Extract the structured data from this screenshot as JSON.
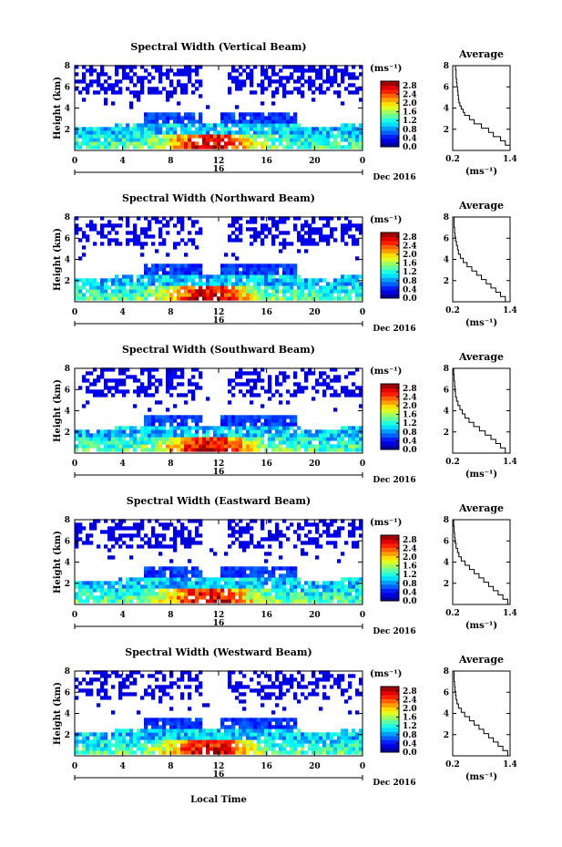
{
  "figure": {
    "xlabel": "Local Time",
    "day_label": "16",
    "date_label": "Dec 2016",
    "ylabel": "Height (km)",
    "colorbar_unit": "(ms⁻¹)",
    "avg_title": "Average",
    "avg_xlabel": "(ms⁻¹)"
  },
  "chart_data": [
    {
      "type": "heatmap",
      "title": "Spectral Width (Vertical Beam)",
      "seed": 11,
      "ylabel": "Height (km)",
      "xlabel": "Local Time",
      "x_ticks": [
        "0",
        "4",
        "8",
        "12",
        "16",
        "20",
        "0"
      ],
      "xlim": [
        0,
        24
      ],
      "y_ticks": [
        "2",
        "4",
        "6",
        "8"
      ],
      "ylim": [
        0,
        8
      ],
      "colorbar_ticks": [
        "0.0",
        "0.4",
        "0.8",
        "1.2",
        "1.6",
        "2.0",
        "2.4",
        "2.8"
      ],
      "colorbar_range": [
        0,
        3.0
      ]
    },
    {
      "type": "heatmap",
      "title": "Spectral Width (Northward Beam)",
      "seed": 23,
      "ylabel": "Height (km)",
      "xlabel": "Local Time",
      "x_ticks": [
        "0",
        "4",
        "8",
        "12",
        "16",
        "20",
        "0"
      ],
      "xlim": [
        0,
        24
      ],
      "y_ticks": [
        "2",
        "4",
        "6",
        "8"
      ],
      "ylim": [
        0,
        8
      ],
      "colorbar_ticks": [
        "0.0",
        "0.4",
        "0.8",
        "1.2",
        "1.6",
        "2.0",
        "2.4",
        "2.8"
      ],
      "colorbar_range": [
        0,
        3.0
      ]
    },
    {
      "type": "heatmap",
      "title": "Spectral Width (Southward Beam)",
      "seed": 37,
      "ylabel": "Height (km)",
      "xlabel": "Local Time",
      "x_ticks": [
        "0",
        "4",
        "8",
        "12",
        "16",
        "20",
        "0"
      ],
      "xlim": [
        0,
        24
      ],
      "y_ticks": [
        "2",
        "4",
        "6",
        "8"
      ],
      "ylim": [
        0,
        8
      ],
      "colorbar_ticks": [
        "0.0",
        "0.4",
        "0.8",
        "1.2",
        "1.6",
        "2.0",
        "2.4",
        "2.8"
      ],
      "colorbar_range": [
        0,
        3.0
      ]
    },
    {
      "type": "heatmap",
      "title": "Spectral Width (Eastward Beam)",
      "seed": 41,
      "ylabel": "Height (km)",
      "xlabel": "Local Time",
      "x_ticks": [
        "0",
        "4",
        "8",
        "12",
        "16",
        "20",
        "0"
      ],
      "xlim": [
        0,
        24
      ],
      "y_ticks": [
        "2",
        "4",
        "6",
        "8"
      ],
      "ylim": [
        0,
        8
      ],
      "colorbar_ticks": [
        "0.0",
        "0.4",
        "0.8",
        "1.2",
        "1.6",
        "2.0",
        "2.4",
        "2.8"
      ],
      "colorbar_range": [
        0,
        3.0
      ]
    },
    {
      "type": "heatmap",
      "title": "Spectral Width (Westward Beam)",
      "seed": 53,
      "ylabel": "Height (km)",
      "xlabel": "Local Time",
      "x_ticks": [
        "0",
        "4",
        "8",
        "12",
        "16",
        "20",
        "0"
      ],
      "xlim": [
        0,
        24
      ],
      "y_ticks": [
        "2",
        "4",
        "6",
        "8"
      ],
      "ylim": [
        0,
        8
      ],
      "colorbar_ticks": [
        "0.0",
        "0.4",
        "0.8",
        "1.2",
        "1.6",
        "2.0",
        "2.4",
        "2.8"
      ],
      "colorbar_range": [
        0,
        3.0
      ]
    },
    {
      "type": "line",
      "title": "Average",
      "beam": "Vertical",
      "xlabel": "(ms⁻¹)",
      "x_ticks": [
        "0.2",
        "1.4"
      ],
      "xlim": [
        0.2,
        1.4
      ],
      "y_ticks": [
        "2",
        "4",
        "6",
        "8"
      ],
      "ylim": [
        0,
        8
      ],
      "series": [
        {
          "x": [
            1.4,
            1.3,
            1.2,
            1.05,
            0.95,
            0.8,
            0.65,
            0.55,
            0.45,
            0.42,
            0.38,
            0.35,
            0.33,
            0.32,
            0.31,
            0.3,
            0.29,
            0.28,
            0.27,
            0.27,
            0.26,
            0.25
          ],
          "y": [
            0.0,
            0.5,
            0.9,
            1.3,
            1.7,
            2.1,
            2.5,
            2.9,
            3.3,
            3.6,
            3.9,
            4.2,
            4.5,
            4.8,
            5.2,
            5.6,
            6.0,
            6.4,
            6.8,
            7.2,
            7.6,
            8.0
          ]
        }
      ]
    },
    {
      "type": "line",
      "title": "Average",
      "beam": "Northward",
      "xlabel": "(ms⁻¹)",
      "x_ticks": [
        "0.2",
        "1.4"
      ],
      "xlim": [
        0.2,
        1.4
      ],
      "y_ticks": [
        "2",
        "4",
        "6",
        "8"
      ],
      "ylim": [
        0,
        8
      ],
      "series": [
        {
          "x": [
            1.3,
            1.2,
            1.1,
            1.0,
            0.9,
            0.8,
            0.7,
            0.6,
            0.5,
            0.42,
            0.36,
            0.32,
            0.3,
            0.28,
            0.26,
            0.25,
            0.24,
            0.23,
            0.23,
            0.22
          ],
          "y": [
            0.0,
            0.5,
            0.9,
            1.3,
            1.7,
            2.1,
            2.5,
            2.9,
            3.3,
            3.7,
            4.1,
            4.5,
            4.9,
            5.3,
            5.7,
            6.1,
            6.5,
            7.0,
            7.5,
            8.0
          ]
        }
      ]
    },
    {
      "type": "line",
      "title": "Average",
      "beam": "Southward",
      "xlabel": "(ms⁻¹)",
      "x_ticks": [
        "0.2",
        "1.4"
      ],
      "xlim": [
        0.2,
        1.4
      ],
      "y_ticks": [
        "2",
        "4",
        "6",
        "8"
      ],
      "ylim": [
        0,
        8
      ],
      "series": [
        {
          "x": [
            1.3,
            1.2,
            1.1,
            1.0,
            0.88,
            0.76,
            0.64,
            0.54,
            0.46,
            0.4,
            0.35,
            0.31,
            0.28,
            0.26,
            0.25,
            0.24,
            0.23,
            0.22,
            0.22
          ],
          "y": [
            0.0,
            0.5,
            0.9,
            1.3,
            1.7,
            2.1,
            2.5,
            2.9,
            3.3,
            3.7,
            4.1,
            4.5,
            4.9,
            5.3,
            5.8,
            6.3,
            6.8,
            7.4,
            8.0
          ]
        }
      ]
    },
    {
      "type": "line",
      "title": "Average",
      "beam": "Eastward",
      "xlabel": "(ms⁻¹)",
      "x_ticks": [
        "0.2",
        "1.4"
      ],
      "xlim": [
        0.2,
        1.4
      ],
      "y_ticks": [
        "2",
        "4",
        "6",
        "8"
      ],
      "ylim": [
        0,
        8
      ],
      "series": [
        {
          "x": [
            1.35,
            1.25,
            1.15,
            1.05,
            0.95,
            0.85,
            0.75,
            0.65,
            0.55,
            0.46,
            0.38,
            0.33,
            0.3,
            0.27,
            0.25,
            0.24,
            0.23,
            0.22,
            0.22
          ],
          "y": [
            0.0,
            0.5,
            0.9,
            1.3,
            1.7,
            2.1,
            2.5,
            2.9,
            3.3,
            3.7,
            4.1,
            4.5,
            4.9,
            5.3,
            5.8,
            6.3,
            6.8,
            7.4,
            8.0
          ]
        }
      ]
    },
    {
      "type": "line",
      "title": "Average",
      "beam": "Westward",
      "xlabel": "(ms⁻¹)",
      "x_ticks": [
        "0.2",
        "1.4"
      ],
      "xlim": [
        0.2,
        1.4
      ],
      "y_ticks": [
        "2",
        "4",
        "6",
        "8"
      ],
      "ylim": [
        0,
        8
      ],
      "series": [
        {
          "x": [
            1.35,
            1.25,
            1.15,
            1.05,
            0.95,
            0.85,
            0.75,
            0.65,
            0.55,
            0.45,
            0.38,
            0.32,
            0.29,
            0.27,
            0.26,
            0.25,
            0.24,
            0.23,
            0.23,
            0.22
          ],
          "y": [
            0.0,
            0.5,
            0.9,
            1.3,
            1.7,
            2.1,
            2.5,
            2.9,
            3.3,
            3.7,
            4.1,
            4.5,
            4.9,
            5.3,
            5.7,
            6.1,
            6.5,
            7.0,
            7.5,
            8.0
          ]
        }
      ]
    }
  ]
}
